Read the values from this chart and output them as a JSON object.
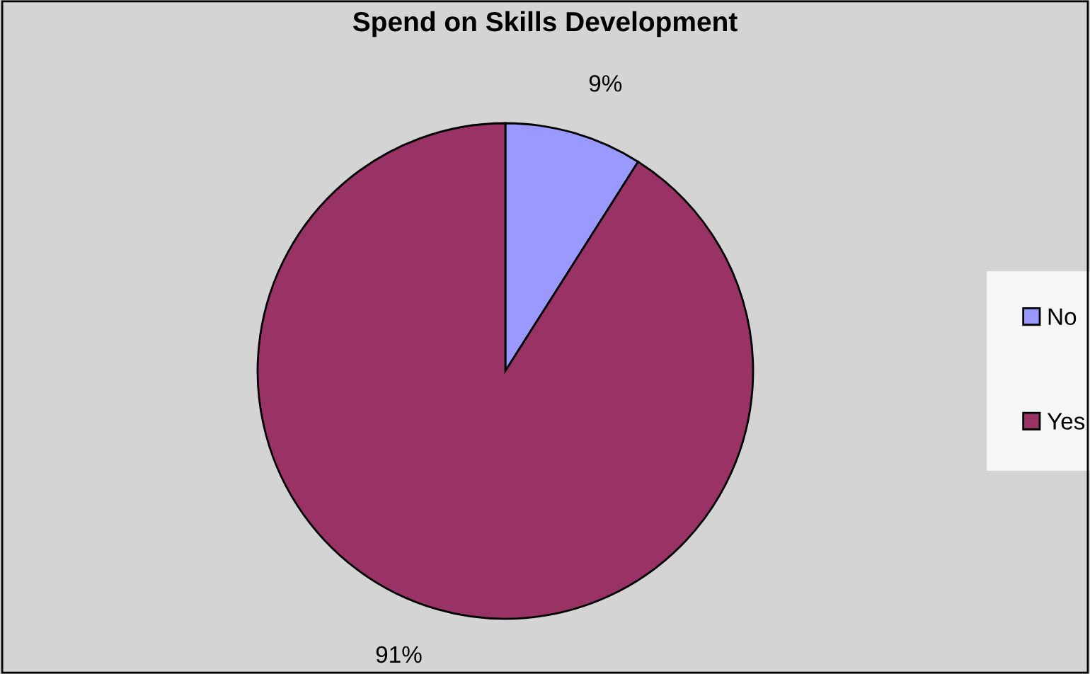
{
  "chart_data": {
    "type": "pie",
    "title": "Spend on Skills Development",
    "categories": [
      "No",
      "Yes"
    ],
    "values": [
      9,
      91
    ],
    "colors": [
      "#9999ff",
      "#993366"
    ],
    "value_labels": [
      "9%",
      "91%"
    ],
    "legend": "right"
  }
}
